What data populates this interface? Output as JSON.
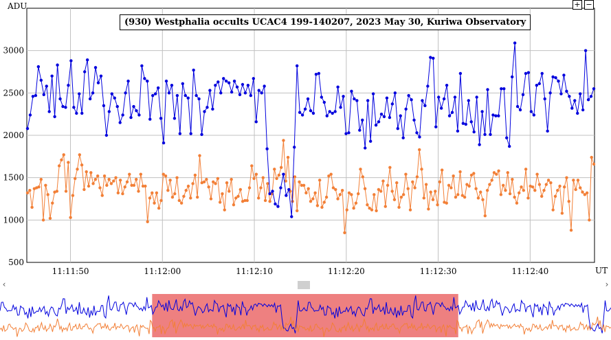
{
  "chart_data": {
    "type": "line",
    "title": "(930) Westphalia occults UCAC4 199-140207, 2023 May 30, Kuriwa Observatory",
    "ylabel": "ADU",
    "xlabel": "UT",
    "ylim": [
      500,
      3500
    ],
    "yticks": [
      "500",
      "1000",
      "1500",
      "2000",
      "2500",
      "3000"
    ],
    "x_start_seconds": 705.25,
    "x_end_seconds": 767.0,
    "xticks": [
      "11:11:50",
      "11:12:00",
      "11:12:10",
      "11:12:20",
      "11:12:30",
      "11:12:40"
    ],
    "grid": true,
    "series": [
      {
        "color": "#0000dd",
        "values": [
          2080,
          2240,
          2460,
          2470,
          2810,
          2650,
          2480,
          2580,
          2280,
          2700,
          2220,
          2830,
          2430,
          2340,
          2330,
          2590,
          2880,
          2330,
          2260,
          2490,
          2260,
          2750,
          2890,
          2430,
          2500,
          2800,
          2620,
          2700,
          2350,
          2000,
          2280,
          2490,
          2440,
          2340,
          2150,
          2240,
          2500,
          2640,
          2210,
          2340,
          2290,
          2240,
          2820,
          2670,
          2640,
          2190,
          2470,
          2490,
          2560,
          2200,
          1910,
          2640,
          2500,
          2590,
          2200,
          2470,
          2020,
          2610,
          2470,
          2440,
          2020,
          2770,
          2470,
          2430,
          2010,
          2280,
          2330,
          2530,
          2310,
          2590,
          2630,
          2500,
          2670,
          2640,
          2620,
          2510,
          2640,
          2570,
          2480,
          2600,
          2500,
          2590,
          2470,
          2670,
          2160,
          2530,
          2500,
          2580,
          1840,
          1310,
          1340,
          1190,
          1160,
          1380,
          1540,
          1290,
          1360,
          1040,
          1860,
          2820,
          2270,
          2240,
          2310,
          2430,
          2290,
          2260,
          2720,
          2730,
          2450,
          2390,
          2230,
          2280,
          2260,
          2280,
          2570,
          2330,
          2460,
          2020,
          2030,
          2520,
          2430,
          2410,
          2060,
          2180,
          1850,
          2410,
          1930,
          2490,
          2120,
          2160,
          2250,
          2220,
          2440,
          2210,
          2370,
          2500,
          2080,
          2230,
          1970,
          2310,
          2470,
          2420,
          2180,
          2030,
          1980,
          2410,
          2350,
          2580,
          2920,
          2910,
          2100,
          2450,
          2320,
          2430,
          2590,
          2230,
          2270,
          2450,
          2050,
          2730,
          2140,
          2130,
          2410,
          2160,
          2040,
          2450,
          1890,
          2280,
          2010,
          2540,
          2010,
          2240,
          2230,
          2230,
          2550,
          2550,
          1970,
          1870,
          2690,
          3090,
          2340,
          2300,
          2480,
          2730,
          2740,
          2280,
          2240,
          2590,
          2610,
          2730,
          2430,
          2050,
          2500,
          2690,
          2680,
          2640,
          2490,
          2710,
          2520,
          2460,
          2320,
          2410,
          2260,
          2490,
          2300,
          3000,
          2420,
          2460,
          2550
        ]
      },
      {
        "color": "#f27f36",
        "values": [
          1320,
          1350,
          1150,
          1370,
          1380,
          1390,
          1480,
          1000,
          1410,
          1300,
          1020,
          1200,
          1330,
          1340,
          1640,
          1710,
          1770,
          1340,
          1680,
          1030,
          1290,
          1490,
          1600,
          1770,
          1650,
          1360,
          1570,
          1400,
          1560,
          1430,
          1480,
          1520,
          1380,
          1290,
          1520,
          1410,
          1480,
          1430,
          1460,
          1500,
          1320,
          1470,
          1310,
          1390,
          1450,
          1540,
          1410,
          1410,
          1480,
          1340,
          1540,
          1400,
          1400,
          980,
          1260,
          1320,
          1200,
          1320,
          1140,
          1230,
          1540,
          1520,
          1350,
          1470,
          1270,
          1310,
          1500,
          1230,
          1200,
          1280,
          1350,
          1400,
          1260,
          1430,
          1530,
          1270,
          1760,
          1440,
          1450,
          1480,
          1390,
          1250,
          1450,
          1430,
          1490,
          1210,
          1310,
          1120,
          1440,
          1340,
          1480,
          1180,
          1260,
          1280,
          1360,
          1220,
          1230,
          1230,
          1380,
          1640,
          1490,
          1540,
          1260,
          1380,
          1500,
          1230,
          1430,
          1220,
          1310,
          1600,
          1490,
          1530,
          1620,
          1940,
          1460,
          1740,
          1340,
          1220,
          1510,
          1110,
          1450,
          1410,
          1410,
          1320,
          1370,
          1220,
          1250,
          1320,
          1170,
          1470,
          1150,
          1210,
          1270,
          1520,
          1540,
          1380,
          1360,
          1250,
          1300,
          1350,
          850,
          1120,
          1320,
          1300,
          1140,
          1200,
          1310,
          1600,
          1510,
          1370,
          1180,
          1140,
          1120,
          1300,
          1110,
          1360,
          1340,
          1460,
          1160,
          1410,
          1620,
          1340,
          1240,
          1440,
          1150,
          1270,
          1300,
          1540,
          1370,
          1120,
          1450,
          1380,
          1510,
          1830,
          1600,
          1260,
          1420,
          1130,
          1330,
          1240,
          1340,
          1180,
          1450,
          1590,
          1210,
          1200,
          1410,
          1380,
          1520,
          1270,
          1300,
          1570,
          1290,
          1270,
          1420,
          1400,
          1530,
          1550,
          1370,
          1260,
          1330,
          1240,
          1050,
          1350,
          1420,
          1470,
          1560,
          1540,
          1580,
          1300,
          1410,
          1350,
          1560,
          1310,
          1480,
          1270,
          1200,
          1320,
          1390,
          1350,
          1600,
          1260,
          1400,
          1390,
          1350,
          1540,
          1420,
          1280,
          1350,
          1420,
          1470,
          1440,
          1120,
          1280,
          1350,
          1400,
          1080,
          1390,
          1500,
          1220,
          880,
          1470,
          1360,
          1470,
          1380,
          1330,
          1300,
          1320,
          1000,
          1740,
          1660
        ]
      }
    ],
    "overview": {
      "window_start_fraction": 0.249,
      "window_end_fraction": 0.75,
      "window_color": "#ee8080"
    }
  },
  "controls": {
    "zoom_in": "+",
    "zoom_out": "−",
    "scroll_left": "‹",
    "scroll_right": "›"
  }
}
